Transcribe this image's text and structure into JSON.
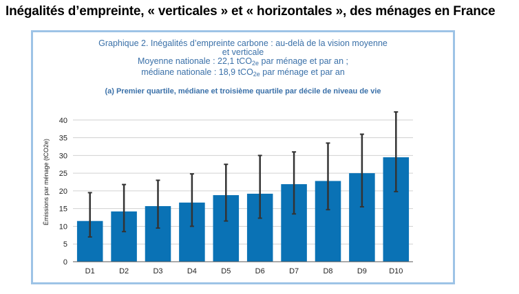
{
  "heading": "Inégalités d’empreinte, « verticales » et « horizontales », des ménages en France",
  "chart_header": {
    "line1": "Graphique 2. Inégalités d’empreinte carbone : au-delà de la vision moyenne",
    "line2": "et verticale",
    "line3_pre": "Moyenne nationale : 22,1 tCO",
    "line3_sub": "2e",
    "line3_post": " par ménage et par an ;",
    "line4_pre": "médiane nationale : 18,9 tCO",
    "line4_sub": "2e",
    "line4_post": " par ménage et par an",
    "subtitle": "(a) Premier quartile, médiane et troisième quartile par décile de niveau de vie"
  },
  "colors": {
    "bar": "#0a72b5",
    "error_bar": "#333333",
    "gridline": "#d0d0d0",
    "title": "#3a70a8"
  },
  "chart_data": {
    "type": "bar",
    "title": "(a) Premier quartile, médiane et troisième quartile par décile de niveau de vie",
    "xlabel": "",
    "ylabel": "Émissions par ménage (tCO2e)",
    "ylim": [
      0,
      45
    ],
    "yticks": [
      0,
      5,
      10,
      15,
      20,
      25,
      30,
      35,
      40
    ],
    "grid": true,
    "categories": [
      "D1",
      "D2",
      "D3",
      "D4",
      "D5",
      "D6",
      "D7",
      "D8",
      "D9",
      "D10"
    ],
    "values": [
      11.5,
      14.2,
      15.7,
      16.7,
      18.8,
      19.2,
      21.9,
      22.8,
      25.0,
      29.5
    ],
    "q1": [
      7.0,
      8.5,
      9.5,
      10.0,
      11.5,
      12.3,
      13.5,
      14.7,
      15.5,
      19.8
    ],
    "q3": [
      19.5,
      21.8,
      23.0,
      24.8,
      27.5,
      30.0,
      31.0,
      33.5,
      36.0,
      42.3
    ]
  }
}
